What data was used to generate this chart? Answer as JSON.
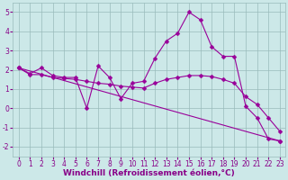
{
  "line1_x": [
    0,
    1,
    2,
    3,
    4,
    5,
    6,
    7,
    8,
    9,
    10,
    11,
    12,
    13,
    14,
    15,
    16,
    17,
    18,
    19,
    20,
    21,
    22,
    23
  ],
  "line1_y": [
    2.1,
    1.8,
    2.1,
    1.7,
    1.6,
    1.6,
    0.0,
    2.2,
    1.6,
    0.5,
    1.3,
    1.4,
    2.6,
    3.5,
    3.9,
    5.0,
    4.6,
    3.2,
    2.7,
    2.7,
    0.1,
    -0.5,
    -1.6,
    -1.7
  ],
  "line2_x": [
    0,
    1,
    2,
    3,
    4,
    5,
    6,
    7,
    8,
    9,
    10,
    11,
    12,
    13,
    14,
    15,
    16,
    17,
    18,
    19,
    20,
    21,
    22,
    23
  ],
  "line2_y": [
    2.1,
    1.75,
    1.75,
    1.6,
    1.55,
    1.5,
    1.4,
    1.3,
    1.25,
    1.15,
    1.1,
    1.05,
    1.3,
    1.5,
    1.6,
    1.7,
    1.7,
    1.65,
    1.5,
    1.3,
    0.6,
    0.2,
    -0.5,
    -1.2
  ],
  "line3_x": [
    0,
    23
  ],
  "line3_y": [
    2.1,
    -1.7
  ],
  "line_color": "#990099",
  "marker": "D",
  "markersize": 2.5,
  "background_color": "#cce8e8",
  "grid_color": "#99bbbb",
  "xlim": [
    -0.5,
    23.5
  ],
  "ylim": [
    -2.5,
    5.5
  ],
  "yticks": [
    -2,
    -1,
    0,
    1,
    2,
    3,
    4,
    5
  ],
  "xticks": [
    0,
    1,
    2,
    3,
    4,
    5,
    6,
    7,
    8,
    9,
    10,
    11,
    12,
    13,
    14,
    15,
    16,
    17,
    18,
    19,
    20,
    21,
    22,
    23
  ],
  "xlabel": "Windchill (Refroidissement éolien,°C)",
  "xlabel_fontsize": 6.5,
  "tick_fontsize": 5.5,
  "tick_color": "#880088",
  "label_color": "#880088"
}
